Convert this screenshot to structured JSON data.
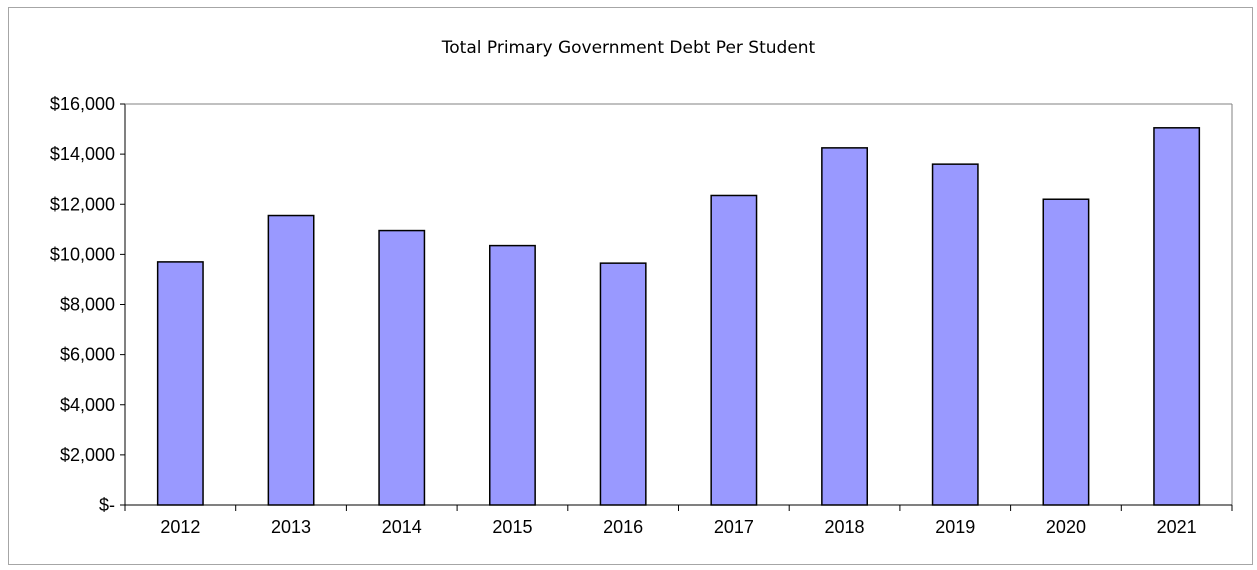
{
  "chart_data": {
    "type": "bar",
    "title": "Total Primary Government Debt Per Student",
    "xlabel": "",
    "ylabel": "",
    "categories": [
      "2012",
      "2013",
      "2014",
      "2015",
      "2016",
      "2017",
      "2018",
      "2019",
      "2020",
      "2021"
    ],
    "values": [
      9700,
      11550,
      10950,
      10350,
      9650,
      12350,
      14250,
      13600,
      12200,
      15050
    ],
    "ylim": [
      0,
      16000
    ],
    "yticks": [
      0,
      2000,
      4000,
      6000,
      8000,
      10000,
      12000,
      14000,
      16000
    ],
    "ytick_labels": [
      "$-",
      "$2,000",
      "$4,000",
      "$6,000",
      "$8,000",
      "$10,000",
      "$12,000",
      "$14,000",
      "$16,000"
    ],
    "grid": false,
    "legend": "none",
    "bar_color": "#9999ff",
    "bar_edge_color": "#000000"
  }
}
